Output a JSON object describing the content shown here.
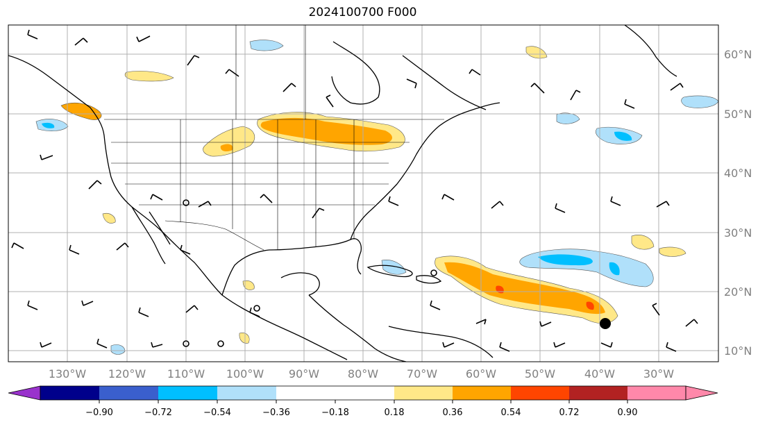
{
  "title": "2024100700 F000",
  "longitude_labels": [
    "130°W",
    "120°W",
    "110°W",
    "100°W",
    "90°W",
    "80°W",
    "70°W",
    "60°W",
    "50°W",
    "40°W",
    "30°W"
  ],
  "latitude_labels": [
    "60°N",
    "50°N",
    "40°N",
    "30°N",
    "20°N",
    "10°N"
  ],
  "colorbar": {
    "tick_labels": [
      "−0.90",
      "−0.72",
      "−0.54",
      "−0.36",
      "−0.18",
      "0.18",
      "0.36",
      "0.54",
      "0.72",
      "0.90"
    ],
    "colors": [
      "#9932cc",
      "#00008b",
      "#3a5fcd",
      "#00bfff",
      "#b0e0fa",
      "#ffffff",
      "#ffe888",
      "#ffa500",
      "#ff4500",
      "#b22222",
      "#ff88aa"
    ]
  },
  "colors": {
    "positive_anomaly": "#ffa500",
    "weak_positive": "#ffe888",
    "negative_anomaly": "#00bfff",
    "weak_negative": "#b0e0fa",
    "coastline": "#000000",
    "grid": "#b0b0b0"
  }
}
